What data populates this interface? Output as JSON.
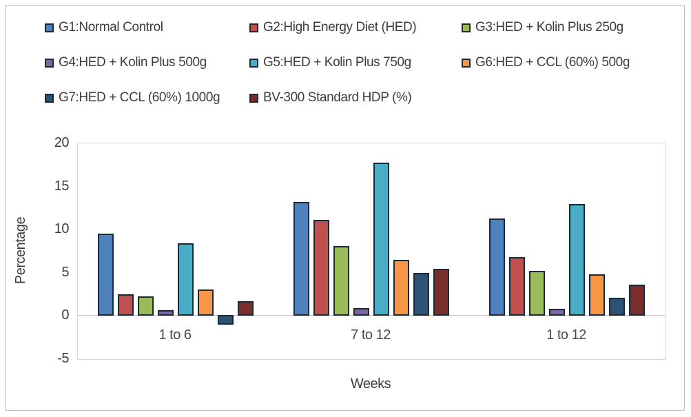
{
  "chart_data": {
    "type": "bar",
    "title": "",
    "xlabel": "Weeks",
    "ylabel": "Percentage",
    "categories": [
      "1 to 6",
      "7 to 12",
      "1 to 12"
    ],
    "series": [
      {
        "name": "G1:Normal Control",
        "color": "#4f81bd",
        "values": [
          9.5,
          13.2,
          11.3
        ]
      },
      {
        "name": "G2:High Energy Diet (HED)",
        "color": "#c0504d",
        "values": [
          2.5,
          11.1,
          6.8
        ]
      },
      {
        "name": "G3:HED + Kolin Plus 250g",
        "color": "#9bbb59",
        "values": [
          2.3,
          8.1,
          5.2
        ]
      },
      {
        "name": "G4:HED + Kolin Plus  500g",
        "color": "#8064a2",
        "values": [
          0.7,
          0.9,
          0.8
        ]
      },
      {
        "name": "G5:HED + Kolin Plus  750g",
        "color": "#4bacc6",
        "values": [
          8.4,
          17.8,
          13.0
        ]
      },
      {
        "name": "G6:HED + CCL (60%) 500g",
        "color": "#f79646",
        "values": [
          3.1,
          6.5,
          4.8
        ]
      },
      {
        "name": "G7:HED + CCL (60%) 1000g",
        "color": "#2e5272",
        "values": [
          -1.1,
          5.0,
          2.1
        ]
      },
      {
        "name": "BV-300 Standard HDP (%)",
        "color": "#7a2e2a",
        "values": [
          1.7,
          5.5,
          3.6
        ]
      }
    ],
    "ylim": [
      -5,
      20
    ],
    "yticks": [
      20,
      15,
      10,
      5,
      0,
      -5
    ],
    "grid": false,
    "legend_position": "top",
    "legend_rows": [
      3,
      3,
      2
    ]
  },
  "colors": {
    "bar_border": "#1b2838",
    "axis_line": "#c6c6c6",
    "plot_border": "#d9d9d9",
    "frame_border": "#bdbdbd",
    "text": "#3d3d3d"
  }
}
